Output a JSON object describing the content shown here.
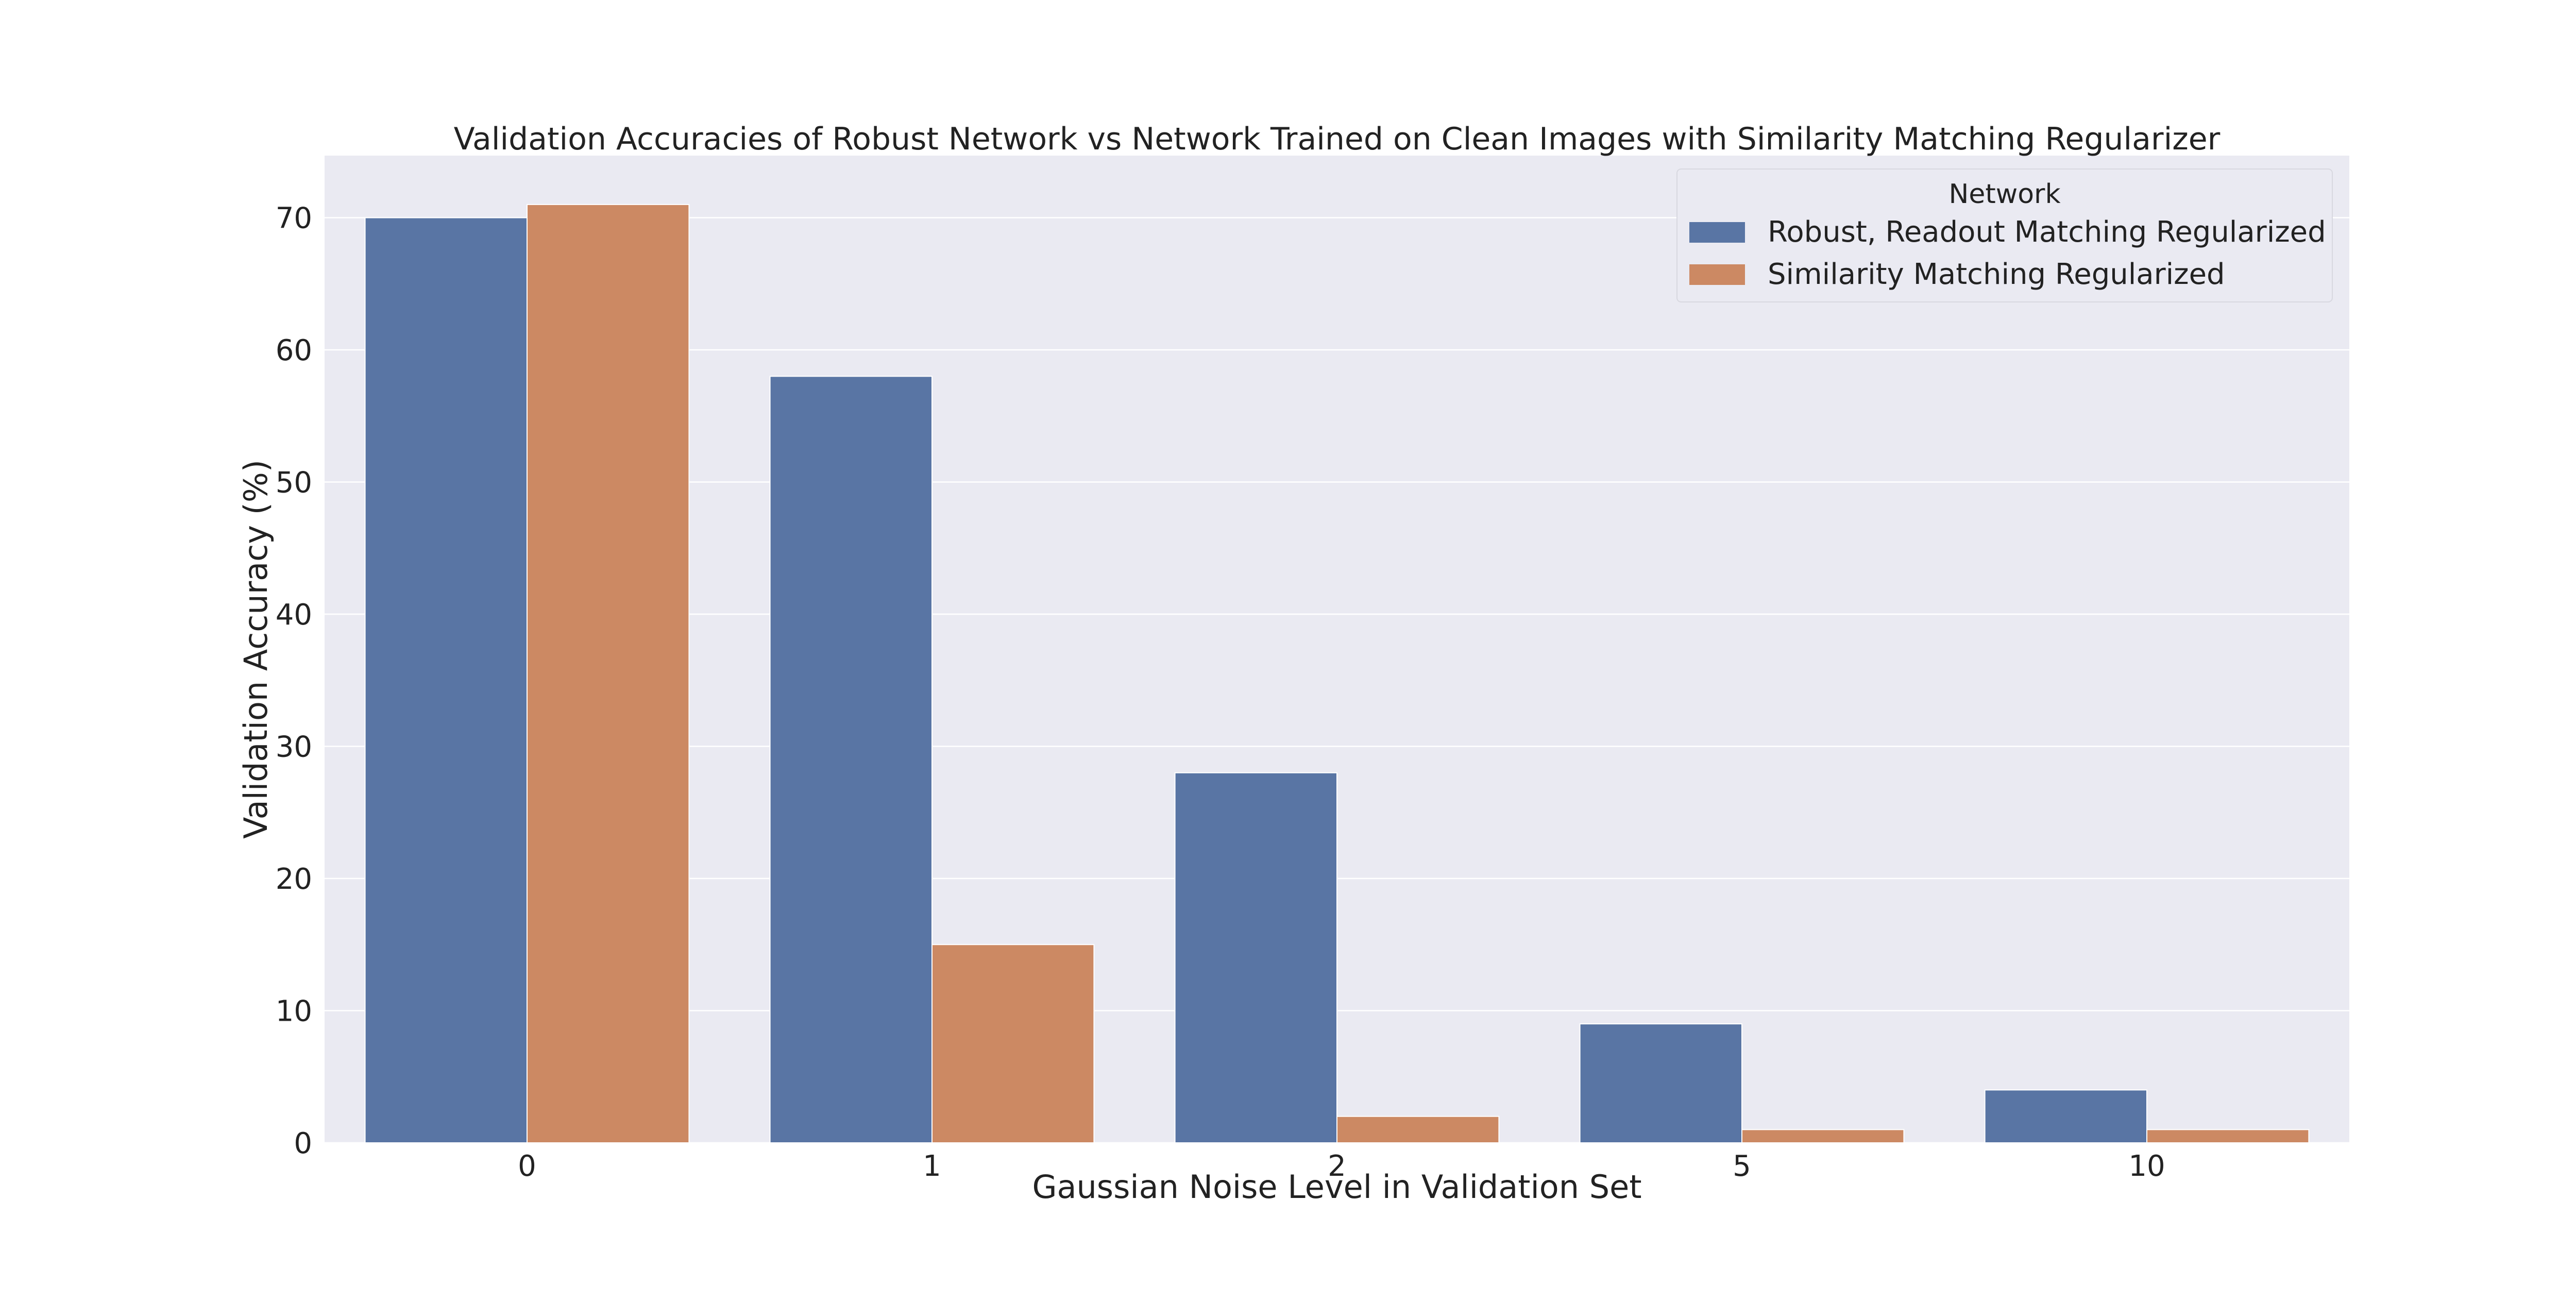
{
  "chart_data": {
    "type": "bar",
    "title": "Validation Accuracies of Robust Network vs Network Trained on Clean Images with Similarity Matching Regularizer",
    "xlabel": "Gaussian Noise Level in Validation Set",
    "ylabel": "Validation Accuracy (%)",
    "categories": [
      "0",
      "1",
      "2",
      "5",
      "10"
    ],
    "series": [
      {
        "name": "Robust, Readout Matching Regularized",
        "color": "#5975a4",
        "values": [
          70,
          58,
          28,
          9,
          4
        ]
      },
      {
        "name": "Similarity Matching Regularized",
        "color": "#cc8963",
        "values": [
          71,
          15,
          2,
          1,
          1
        ]
      }
    ],
    "ylim": [
      0,
      74.7
    ],
    "yticks": [
      0,
      10,
      20,
      30,
      40,
      50,
      60,
      70
    ],
    "grid": true,
    "background": "#eaeaf2",
    "legend": {
      "title": "Network",
      "placement": "top-right"
    }
  }
}
